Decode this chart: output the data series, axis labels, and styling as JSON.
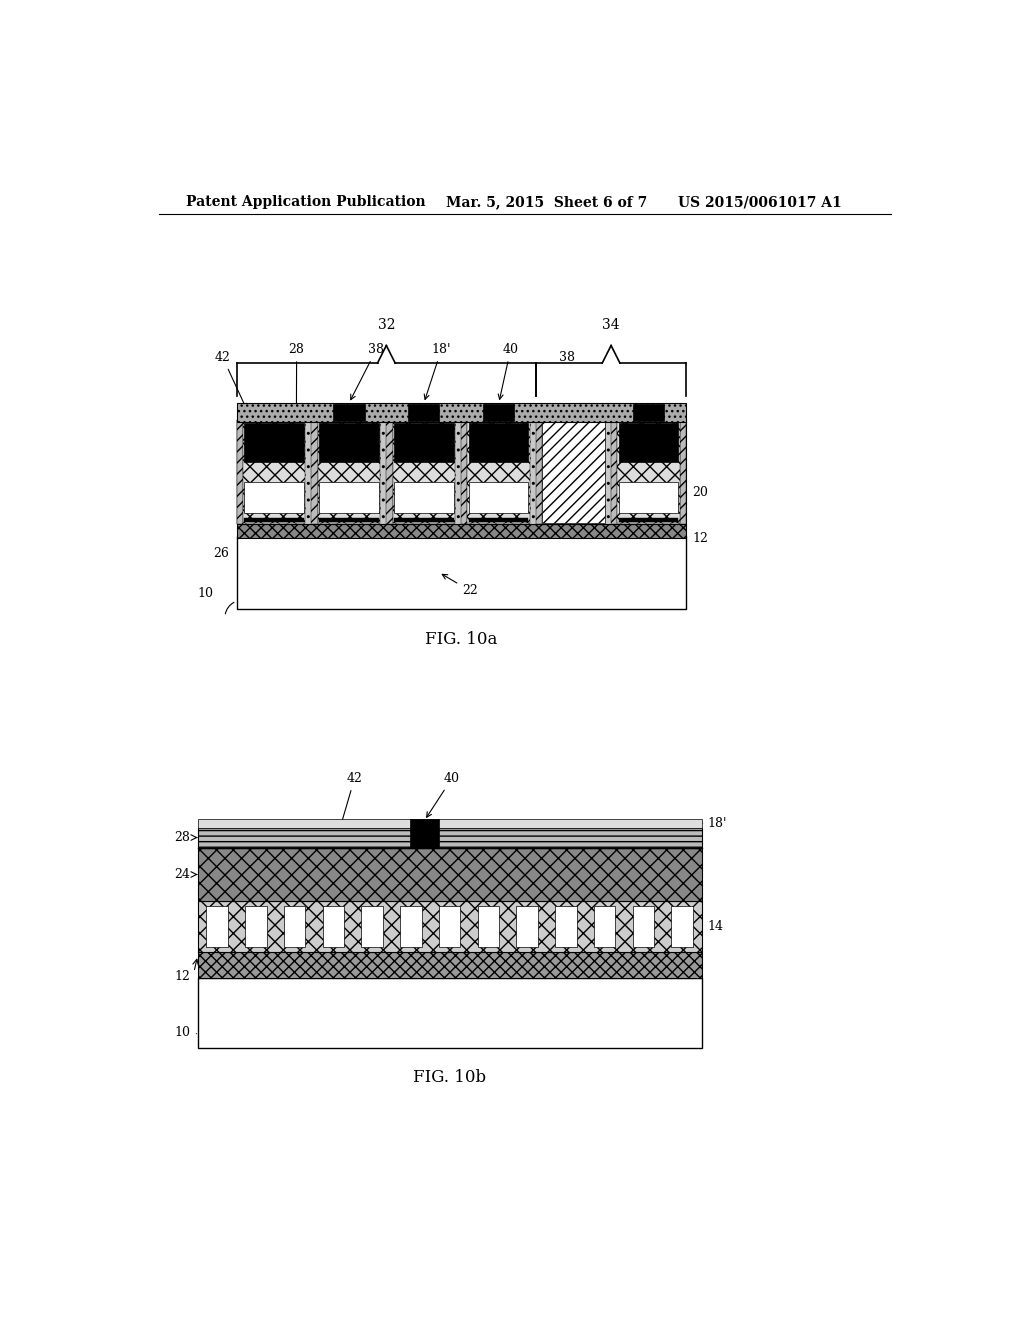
{
  "bg_color": "#ffffff",
  "header_left": "Patent Application Publication",
  "header_mid": "Mar. 5, 2015  Sheet 6 of 7",
  "header_right": "US 2015/0061017 A1",
  "fig_label_a": "FIG. 10a",
  "fig_label_b": "FIG. 10b",
  "label_32": "32",
  "label_34": "34",
  "label_42_a": "42",
  "label_28_a": "28",
  "label_38a_a": "38",
  "label_18p_a": "18'",
  "label_40_a": "40",
  "label_38b_a": "38",
  "label_20_a": "20",
  "label_26_a": "26",
  "label_12_a": "12",
  "label_22_a": "22",
  "label_10_a": "10",
  "label_28_b": "28",
  "label_42_b": "42",
  "label_40_b": "40",
  "label_18p_b": "18'",
  "label_24_b": "24",
  "label_14_b": "14",
  "label_12_b": "12",
  "label_10_b": "10"
}
